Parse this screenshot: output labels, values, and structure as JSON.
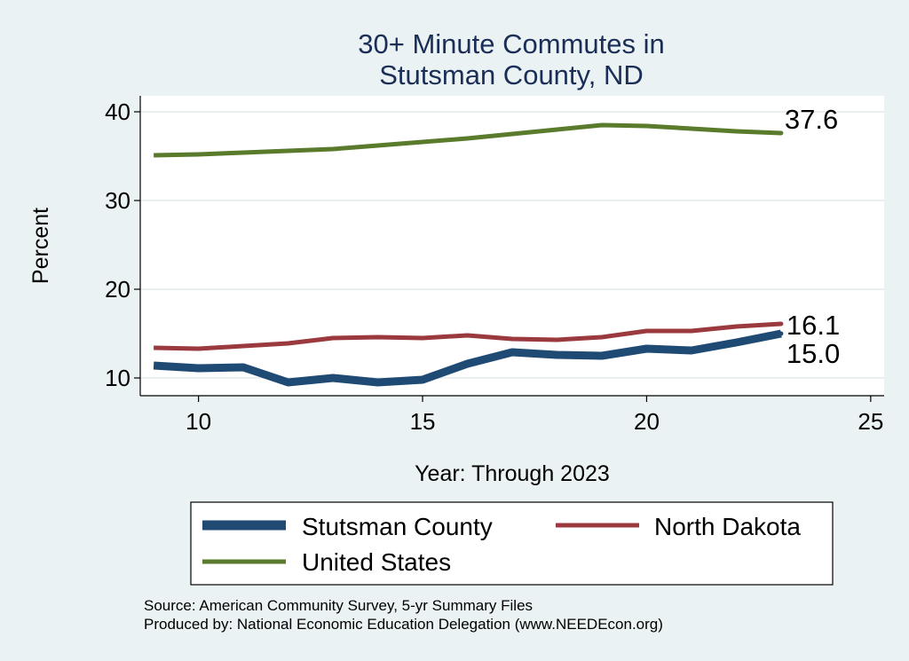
{
  "chart_data": {
    "type": "line",
    "title": "30+ Minute Commutes in",
    "subtitle": "Stutsman County, ND",
    "xlabel": "Year: Through 2023",
    "ylabel": "Percent",
    "xlim": [
      8.7,
      25.3
    ],
    "ylim": [
      8.0,
      41.8
    ],
    "x_ticks": [
      10,
      15,
      20,
      25
    ],
    "y_ticks": [
      10,
      20,
      30,
      40
    ],
    "grid": "horizontal",
    "legend_position": "bottom",
    "series": [
      {
        "name": "Stutsman County",
        "color": "#1f4a73",
        "x": [
          9,
          10,
          11,
          12,
          13,
          14,
          15,
          16,
          17,
          18,
          19,
          20,
          21,
          22,
          23
        ],
        "values": [
          11.4,
          11.1,
          11.2,
          9.5,
          10.0,
          9.5,
          9.8,
          11.6,
          12.9,
          12.6,
          12.5,
          13.3,
          13.1,
          14.0,
          15.0
        ],
        "end_label": "15.0"
      },
      {
        "name": "North Dakota",
        "color": "#9b3a3e",
        "x": [
          9,
          10,
          11,
          12,
          13,
          14,
          15,
          16,
          17,
          18,
          19,
          20,
          21,
          22,
          23
        ],
        "values": [
          13.4,
          13.3,
          13.6,
          13.9,
          14.5,
          14.6,
          14.5,
          14.8,
          14.4,
          14.3,
          14.6,
          15.3,
          15.3,
          15.8,
          16.1
        ],
        "end_label": "16.1"
      },
      {
        "name": "United States",
        "color": "#5a7a2c",
        "x": [
          9,
          10,
          11,
          12,
          13,
          14,
          15,
          16,
          17,
          18,
          19,
          20,
          21,
          22,
          23
        ],
        "values": [
          35.1,
          35.2,
          35.4,
          35.6,
          35.8,
          36.2,
          36.6,
          37.0,
          37.5,
          38.0,
          38.5,
          38.4,
          38.1,
          37.8,
          37.6
        ],
        "end_label": "37.6"
      }
    ]
  },
  "notes": {
    "source": "Source: American Community Survey, 5-yr Summary Files",
    "produced": "Produced by: National Economic Education Delegation (www.NEEDEcon.org)"
  }
}
